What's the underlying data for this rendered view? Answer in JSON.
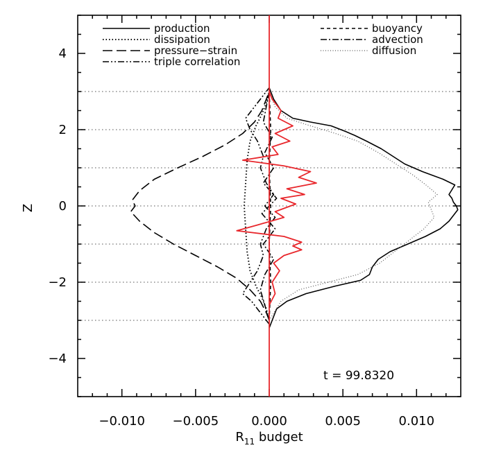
{
  "chart_data": {
    "type": "line",
    "title": "",
    "xlabel_main": "R",
    "xlabel_sub": "11",
    "xlabel_rest": " budget",
    "ylabel": "Z",
    "xlim": [
      -0.013,
      0.013
    ],
    "ylim": [
      -5,
      5
    ],
    "x_ticks": [
      -0.01,
      -0.005,
      0.0,
      0.005,
      0.01
    ],
    "x_tick_labels": [
      "−0.010",
      "−0.005",
      "0.000",
      "0.005",
      "0.010"
    ],
    "y_ticks": [
      -4,
      -2,
      0,
      2,
      4
    ],
    "y_tick_labels": [
      "−4",
      "−2",
      "0",
      "2",
      "4"
    ],
    "grid_lines_y": [
      -3,
      -2,
      -1,
      0,
      1,
      2,
      3
    ],
    "annotation": "t  =  99.8320",
    "legend": {
      "left": [
        "production",
        "dissipation",
        "pressure−strain",
        "triple correlation"
      ],
      "right": [
        "buoyancy",
        "advection",
        "diffusion"
      ]
    },
    "series": [
      {
        "name": "production",
        "style": "solid",
        "color": "#000000",
        "points": [
          [
            0.0,
            -3.2
          ],
          [
            0.0002,
            -3.0
          ],
          [
            0.0005,
            -2.7
          ],
          [
            0.0012,
            -2.5
          ],
          [
            0.0025,
            -2.3
          ],
          [
            0.0045,
            -2.1
          ],
          [
            0.0062,
            -1.95
          ],
          [
            0.0068,
            -1.8
          ],
          [
            0.007,
            -1.6
          ],
          [
            0.0074,
            -1.4
          ],
          [
            0.0082,
            -1.2
          ],
          [
            0.0094,
            -1.0
          ],
          [
            0.0106,
            -0.8
          ],
          [
            0.0116,
            -0.6
          ],
          [
            0.0122,
            -0.4
          ],
          [
            0.0126,
            -0.2
          ],
          [
            0.0128,
            -0.1
          ],
          [
            0.0127,
            0.0
          ],
          [
            0.0125,
            0.1
          ],
          [
            0.0124,
            0.2
          ],
          [
            0.0122,
            0.3
          ],
          [
            0.0126,
            0.55
          ],
          [
            0.0118,
            0.7
          ],
          [
            0.0104,
            0.9
          ],
          [
            0.0092,
            1.1
          ],
          [
            0.0084,
            1.3
          ],
          [
            0.0076,
            1.5
          ],
          [
            0.0066,
            1.7
          ],
          [
            0.0058,
            1.85
          ],
          [
            0.0052,
            1.95
          ],
          [
            0.0042,
            2.1
          ],
          [
            0.0028,
            2.2
          ],
          [
            0.0016,
            2.3
          ],
          [
            0.0008,
            2.5
          ],
          [
            0.0003,
            2.8
          ],
          [
            0.0,
            3.1
          ]
        ]
      },
      {
        "name": "dissipation",
        "style": "dotted",
        "color": "#000000",
        "points": [
          [
            0.0,
            -3.0
          ],
          [
            -0.0002,
            -2.7
          ],
          [
            -0.0005,
            -2.4
          ],
          [
            -0.0009,
            -2.1
          ],
          [
            -0.0013,
            -1.7
          ],
          [
            -0.0015,
            -1.2
          ],
          [
            -0.0016,
            -0.6
          ],
          [
            -0.0017,
            0.0
          ],
          [
            -0.0016,
            0.6
          ],
          [
            -0.0015,
            1.2
          ],
          [
            -0.0013,
            1.7
          ],
          [
            -0.0009,
            2.1
          ],
          [
            -0.0005,
            2.4
          ],
          [
            -0.0002,
            2.7
          ],
          [
            0.0,
            3.0
          ]
        ]
      },
      {
        "name": "pressure−strain",
        "style": "longdash",
        "color": "#000000",
        "points": [
          [
            0.0,
            -3.0
          ],
          [
            -0.0002,
            -2.8
          ],
          [
            -0.0006,
            -2.5
          ],
          [
            -0.0013,
            -2.2
          ],
          [
            -0.0022,
            -1.9
          ],
          [
            -0.0035,
            -1.6
          ],
          [
            -0.005,
            -1.3
          ],
          [
            -0.0065,
            -1.0
          ],
          [
            -0.0078,
            -0.7
          ],
          [
            -0.0088,
            -0.4
          ],
          [
            -0.0094,
            -0.15
          ],
          [
            -0.0091,
            0.0
          ],
          [
            -0.0093,
            0.15
          ],
          [
            -0.0088,
            0.4
          ],
          [
            -0.0078,
            0.7
          ],
          [
            -0.0062,
            1.0
          ],
          [
            -0.0045,
            1.3
          ],
          [
            -0.003,
            1.6
          ],
          [
            -0.0018,
            1.9
          ],
          [
            -0.001,
            2.2
          ],
          [
            -0.0005,
            2.5
          ],
          [
            -0.0002,
            2.8
          ],
          [
            0.0,
            3.0
          ]
        ]
      },
      {
        "name": "triple correlation",
        "style": "dashdotdot",
        "color": "#000000",
        "points": [
          [
            0.0,
            -3.1
          ],
          [
            -0.0006,
            -2.8
          ],
          [
            -0.0012,
            -2.5
          ],
          [
            -0.0018,
            -2.3
          ],
          [
            -0.0013,
            -2.0
          ],
          [
            -0.0008,
            -1.7
          ],
          [
            -0.0004,
            -1.3
          ],
          [
            -0.0006,
            -1.0
          ],
          [
            -0.0002,
            -0.6
          ],
          [
            0.0004,
            -0.3
          ],
          [
            -0.0003,
            0.0
          ],
          [
            0.0003,
            0.3
          ],
          [
            -0.0002,
            0.6
          ],
          [
            -0.0006,
            1.0
          ],
          [
            -0.0004,
            1.3
          ],
          [
            -0.0008,
            1.7
          ],
          [
            -0.0013,
            2.0
          ],
          [
            -0.0016,
            2.3
          ],
          [
            -0.001,
            2.6
          ],
          [
            -0.0004,
            2.9
          ],
          [
            0.0,
            3.1
          ]
        ]
      },
      {
        "name": "buoyancy",
        "style": "shortdash",
        "color": "#000000",
        "points": [
          [
            0.0,
            -3.0
          ],
          [
            0.0001,
            -2.0
          ],
          [
            0.0,
            -1.0
          ],
          [
            0.0001,
            0.0
          ],
          [
            0.0,
            1.0
          ],
          [
            0.0001,
            2.0
          ],
          [
            0.0,
            3.0
          ]
        ]
      },
      {
        "name": "advection",
        "style": "dashdot",
        "color": "#000000",
        "points": [
          [
            0.0,
            -3.0
          ],
          [
            -0.0003,
            -2.6
          ],
          [
            -0.0006,
            -2.2
          ],
          [
            -0.0003,
            -1.8
          ],
          [
            0.0003,
            -1.4
          ],
          [
            -0.0004,
            -1.0
          ],
          [
            0.0004,
            -0.6
          ],
          [
            -0.0005,
            -0.2
          ],
          [
            0.0005,
            0.2
          ],
          [
            -0.0004,
            0.6
          ],
          [
            0.0003,
            1.0
          ],
          [
            -0.0003,
            1.4
          ],
          [
            0.0002,
            1.8
          ],
          [
            -0.0004,
            2.2
          ],
          [
            -0.0002,
            2.6
          ],
          [
            0.0,
            3.0
          ]
        ]
      },
      {
        "name": "diffusion",
        "style": "thindotted",
        "color": "#555555",
        "points": [
          [
            0.0,
            -3.0
          ],
          [
            0.0008,
            -2.5
          ],
          [
            0.002,
            -2.2
          ],
          [
            0.004,
            -2.0
          ],
          [
            0.006,
            -1.8
          ],
          [
            0.0075,
            -1.5
          ],
          [
            0.0085,
            -1.2
          ],
          [
            0.0095,
            -0.9
          ],
          [
            0.0105,
            -0.6
          ],
          [
            0.0112,
            -0.3
          ],
          [
            0.011,
            -0.1
          ],
          [
            0.0108,
            0.1
          ],
          [
            0.0114,
            0.3
          ],
          [
            0.0108,
            0.5
          ],
          [
            0.0098,
            0.8
          ],
          [
            0.0086,
            1.1
          ],
          [
            0.0074,
            1.4
          ],
          [
            0.006,
            1.7
          ],
          [
            0.0045,
            1.9
          ],
          [
            0.0028,
            2.1
          ],
          [
            0.0012,
            2.3
          ],
          [
            0.0004,
            2.6
          ],
          [
            0.0,
            3.0
          ]
        ]
      },
      {
        "name": "",
        "style": "solid",
        "color": "#e8262b",
        "points": [
          [
            0.0,
            -2.6
          ],
          [
            0.0004,
            -2.3
          ],
          [
            0.0002,
            -2.0
          ],
          [
            0.0007,
            -1.7
          ],
          [
            0.0003,
            -1.5
          ],
          [
            0.001,
            -1.3
          ],
          [
            0.0022,
            -1.15
          ],
          [
            0.0016,
            -1.05
          ],
          [
            0.0022,
            -0.95
          ],
          [
            0.001,
            -0.8
          ],
          [
            -0.0022,
            -0.65
          ],
          [
            -0.0008,
            -0.5
          ],
          [
            0.001,
            -0.3
          ],
          [
            0.0004,
            -0.15
          ],
          [
            0.0018,
            0.05
          ],
          [
            0.0008,
            0.2
          ],
          [
            0.0024,
            0.3
          ],
          [
            0.0012,
            0.45
          ],
          [
            0.0032,
            0.6
          ],
          [
            0.002,
            0.75
          ],
          [
            0.0028,
            0.9
          ],
          [
            0.001,
            1.05
          ],
          [
            -0.0018,
            1.2
          ],
          [
            0.0006,
            1.35
          ],
          [
            0.0002,
            1.55
          ],
          [
            0.0014,
            1.7
          ],
          [
            0.0004,
            1.9
          ],
          [
            0.0016,
            2.1
          ],
          [
            0.0006,
            2.3
          ],
          [
            0.0008,
            2.5
          ],
          [
            0.0002,
            2.8
          ],
          [
            0.0,
            3.0
          ]
        ]
      }
    ]
  }
}
